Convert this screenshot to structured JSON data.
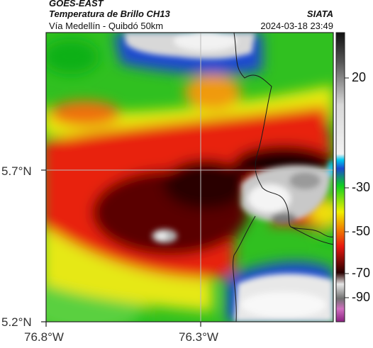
{
  "header": {
    "satellite": "GOES-EAST",
    "product": "Temperatura de Brillo CH13",
    "region": "Vía Medellín - Quibdó 50km",
    "source": "SIATA",
    "datetime": "2024-03-18 23:49"
  },
  "map": {
    "lat_ticks": [
      "5.7°N",
      "5.2°N"
    ],
    "lon_ticks": [
      "76.8°W",
      "76.3°W"
    ],
    "gridlines": true
  },
  "colorbar": {
    "labels": [
      "20",
      "-30",
      "-50",
      "-70",
      "-90"
    ],
    "colors": {
      "warm": "#e8e8e8",
      "cyan": "#00c8f0",
      "blue": "#1a4ad0",
      "green": "#10d020",
      "yellow": "#f0f000",
      "red": "#e81810",
      "dark": "#2a0000",
      "magenta": "#c040a0"
    }
  }
}
